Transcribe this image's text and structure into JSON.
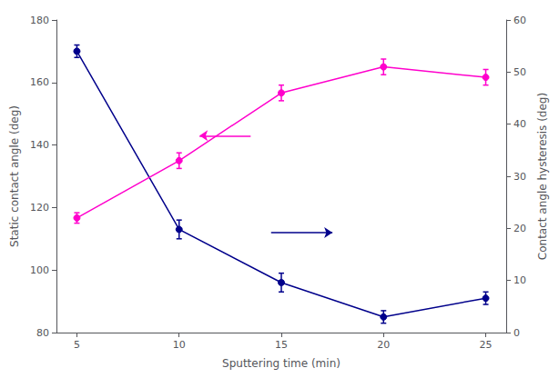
{
  "chart_data": {
    "type": "line",
    "xlabel": "Sputtering time (min)",
    "ylabel": "Static contact angle (deg)",
    "y2label": "Contact angle hysteresis (deg)",
    "x": [
      5,
      10,
      15,
      20,
      25
    ],
    "series": [
      {
        "color": "#00008B",
        "marker": "circle",
        "axis": "y",
        "values": [
          170,
          113,
          96,
          85,
          91
        ],
        "errors": [
          2,
          3,
          3,
          2,
          2
        ]
      },
      {
        "color": "#FF00CC",
        "marker": "circle",
        "axis": "y2",
        "values": [
          22,
          33,
          46,
          51,
          49
        ],
        "errors": [
          1,
          1.5,
          1.5,
          1.5,
          1.5
        ]
      }
    ],
    "xlim": [
      4,
      26
    ],
    "xticks": [
      5,
      10,
      15,
      20,
      25
    ],
    "ylim": [
      80,
      180
    ],
    "yticks": [
      80,
      100,
      120,
      140,
      160,
      180
    ],
    "y2lim": [
      0,
      60
    ],
    "y2ticks": [
      0,
      10,
      20,
      30,
      40,
      50,
      60
    ],
    "grid": false,
    "annotations": [
      {
        "type": "arrow",
        "from": [
          14.5,
          112
        ],
        "to": [
          17.5,
          112
        ],
        "color": "#00008B",
        "axis": "y"
      },
      {
        "type": "arrow",
        "from": [
          13.5,
          143
        ],
        "to": [
          11.0,
          143
        ],
        "color": "#FF00CC",
        "axis": "y"
      }
    ]
  }
}
